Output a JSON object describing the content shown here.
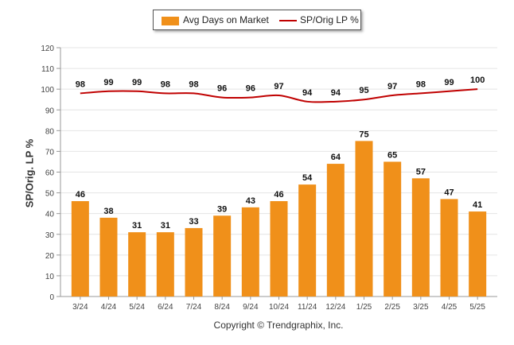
{
  "chart_data": {
    "type": "bar",
    "categories": [
      "3/24",
      "4/24",
      "5/24",
      "6/24",
      "7/24",
      "8/24",
      "9/24",
      "10/24",
      "11/24",
      "12/24",
      "1/25",
      "2/25",
      "3/25",
      "4/25",
      "5/25"
    ],
    "series": [
      {
        "name": "Avg Days on Market",
        "type": "bar",
        "values": [
          46,
          38,
          31,
          31,
          33,
          39,
          43,
          46,
          54,
          64,
          75,
          65,
          57,
          47,
          41
        ]
      },
      {
        "name": "SP/Orig LP %",
        "type": "line",
        "values": [
          98,
          99,
          99,
          98,
          98,
          96,
          96,
          97,
          94,
          94,
          95,
          97,
          98,
          99,
          100
        ]
      }
    ],
    "ylabel": "SP/Orig. LP %",
    "ylim": [
      0,
      120
    ],
    "yticks": [
      0,
      10,
      20,
      30,
      40,
      50,
      60,
      70,
      80,
      90,
      100,
      110,
      120
    ],
    "grid": true,
    "legend_position": "top-center"
  },
  "colors": {
    "bar": "#f0901a",
    "line": "#c00000",
    "grid": "#e4e4e4",
    "axis": "#999999"
  },
  "copyright": "Copyright © Trendgraphix, Inc."
}
